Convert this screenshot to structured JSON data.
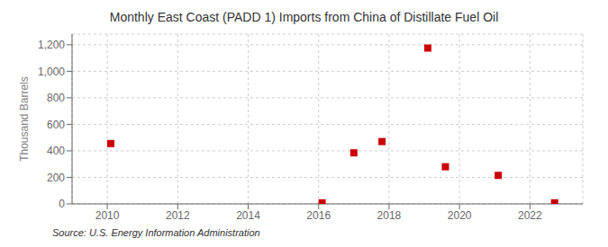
{
  "chart_data": {
    "type": "scatter",
    "title": "Monthly East Coast (PADD 1) Imports from China of Distillate Fuel Oil",
    "ylabel": "Thousand Barrels",
    "source": "Source: U.S. Energy Information Administration",
    "x": [
      2010.1,
      2016.1,
      2017.0,
      2017.8,
      2019.1,
      2019.6,
      2021.1,
      2022.7
    ],
    "values": [
      455,
      8,
      385,
      470,
      1175,
      280,
      215,
      8
    ],
    "color": "#cc0000",
    "marker": "square",
    "xlim": [
      2009.0,
      2023.5
    ],
    "ylim": [
      0,
      1280
    ],
    "xticks": [
      2010,
      2012,
      2014,
      2016,
      2018,
      2020,
      2022
    ],
    "yticks": [
      0,
      200,
      400,
      600,
      800,
      {
        "value": 1000,
        "label": "1,000"
      },
      {
        "value": 1200,
        "label": "1,200"
      }
    ],
    "grid": true
  }
}
